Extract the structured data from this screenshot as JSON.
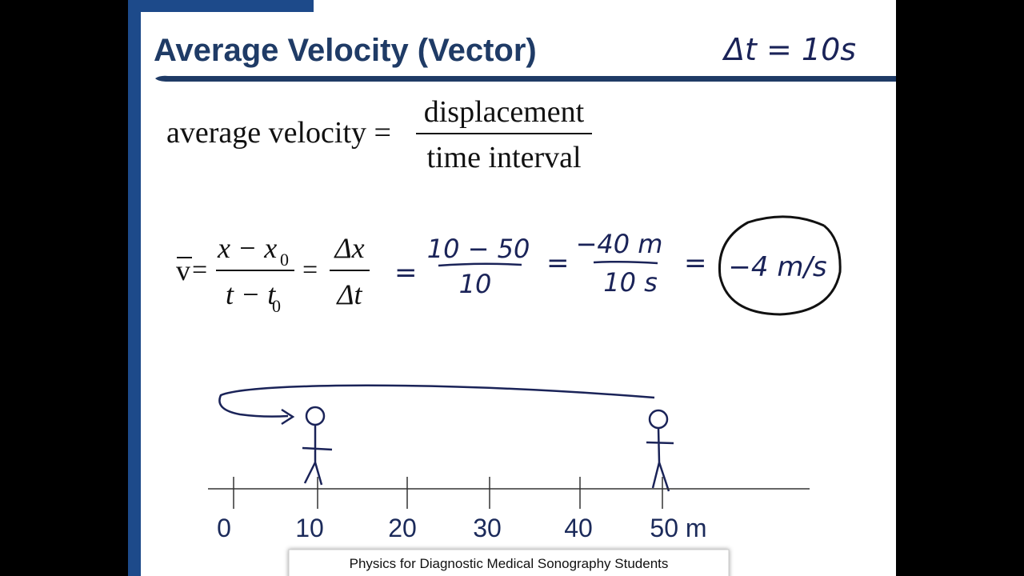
{
  "slide": {
    "title": "Average Velocity (Vector)",
    "handwritten_note": "Δt = 10s",
    "definition": {
      "lhs": "average velocity =",
      "numerator": "displacement",
      "denominator": "time interval"
    },
    "equation": {
      "symbol": "v",
      "equals_1": "=",
      "numerator": "x − x",
      "numerator_sub": "0",
      "denominator": "t − t",
      "denominator_sub": "0",
      "equals_2": "=",
      "delta_numerator": "Δx",
      "delta_denominator": "Δt"
    },
    "handwritten_work": {
      "equals_1": "=",
      "step_1_numerator": "10 − 50",
      "step_1_denominator": "10",
      "equals_2": "=",
      "step_2_numerator": "−40 m",
      "step_2_denominator": "10 s",
      "equals_3": "=",
      "result": "−4 m/s"
    },
    "number_line": {
      "labels": [
        "0",
        "10",
        "20",
        "30",
        "40",
        "50 m"
      ]
    },
    "footer": "Physics for Diagnostic Medical Sonography Students"
  }
}
